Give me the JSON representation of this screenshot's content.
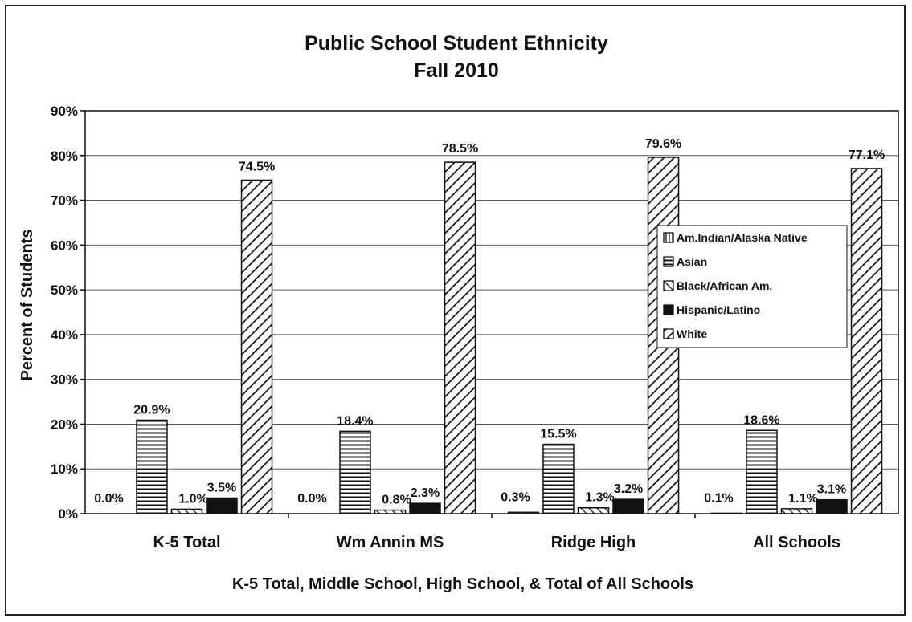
{
  "chart_data": {
    "type": "bar",
    "title": "Public School Student Ethnicity",
    "subtitle": "Fall 2010",
    "xlabel": "K-5 Total, Middle School, High School, & Total of All Schools",
    "ylabel": "Percent of Students",
    "ylim": [
      0,
      90
    ],
    "y_ticks": [
      "0%",
      "10%",
      "20%",
      "30%",
      "40%",
      "50%",
      "60%",
      "70%",
      "80%",
      "90%"
    ],
    "grid": true,
    "legend_position": "right",
    "categories": [
      "K-5 Total",
      "Wm Annin MS",
      "Ridge High",
      "All Schools"
    ],
    "series": [
      {
        "name": "Am.Indian/Alaska Native",
        "pattern": "vertical",
        "values": [
          0.0,
          0.0,
          0.3,
          0.1
        ],
        "labels": [
          "0.0%",
          "0.0%",
          "0.3%",
          "0.1%"
        ]
      },
      {
        "name": "Asian",
        "pattern": "horizontal",
        "values": [
          20.9,
          18.4,
          15.5,
          18.6
        ],
        "labels": [
          "20.9%",
          "18.4%",
          "15.5%",
          "18.6%"
        ]
      },
      {
        "name": "Black/African Am.",
        "pattern": "back-diagonal",
        "values": [
          1.0,
          0.8,
          1.3,
          1.1
        ],
        "labels": [
          "1.0%",
          "0.8%",
          "1.3%",
          "1.1%"
        ]
      },
      {
        "name": "Hispanic/Latino",
        "pattern": "solid",
        "values": [
          3.5,
          2.3,
          3.2,
          3.1
        ],
        "labels": [
          "3.5%",
          "2.3%",
          "3.2%",
          "3.1%"
        ]
      },
      {
        "name": "White",
        "pattern": "forward-diagonal",
        "values": [
          74.5,
          78.5,
          79.6,
          77.1
        ],
        "labels": [
          "74.5%",
          "78.5%",
          "79.6%",
          "77.1%"
        ]
      }
    ],
    "colors": {
      "ink": "#111111",
      "grid": "#555555",
      "background": "#ffffff"
    }
  }
}
